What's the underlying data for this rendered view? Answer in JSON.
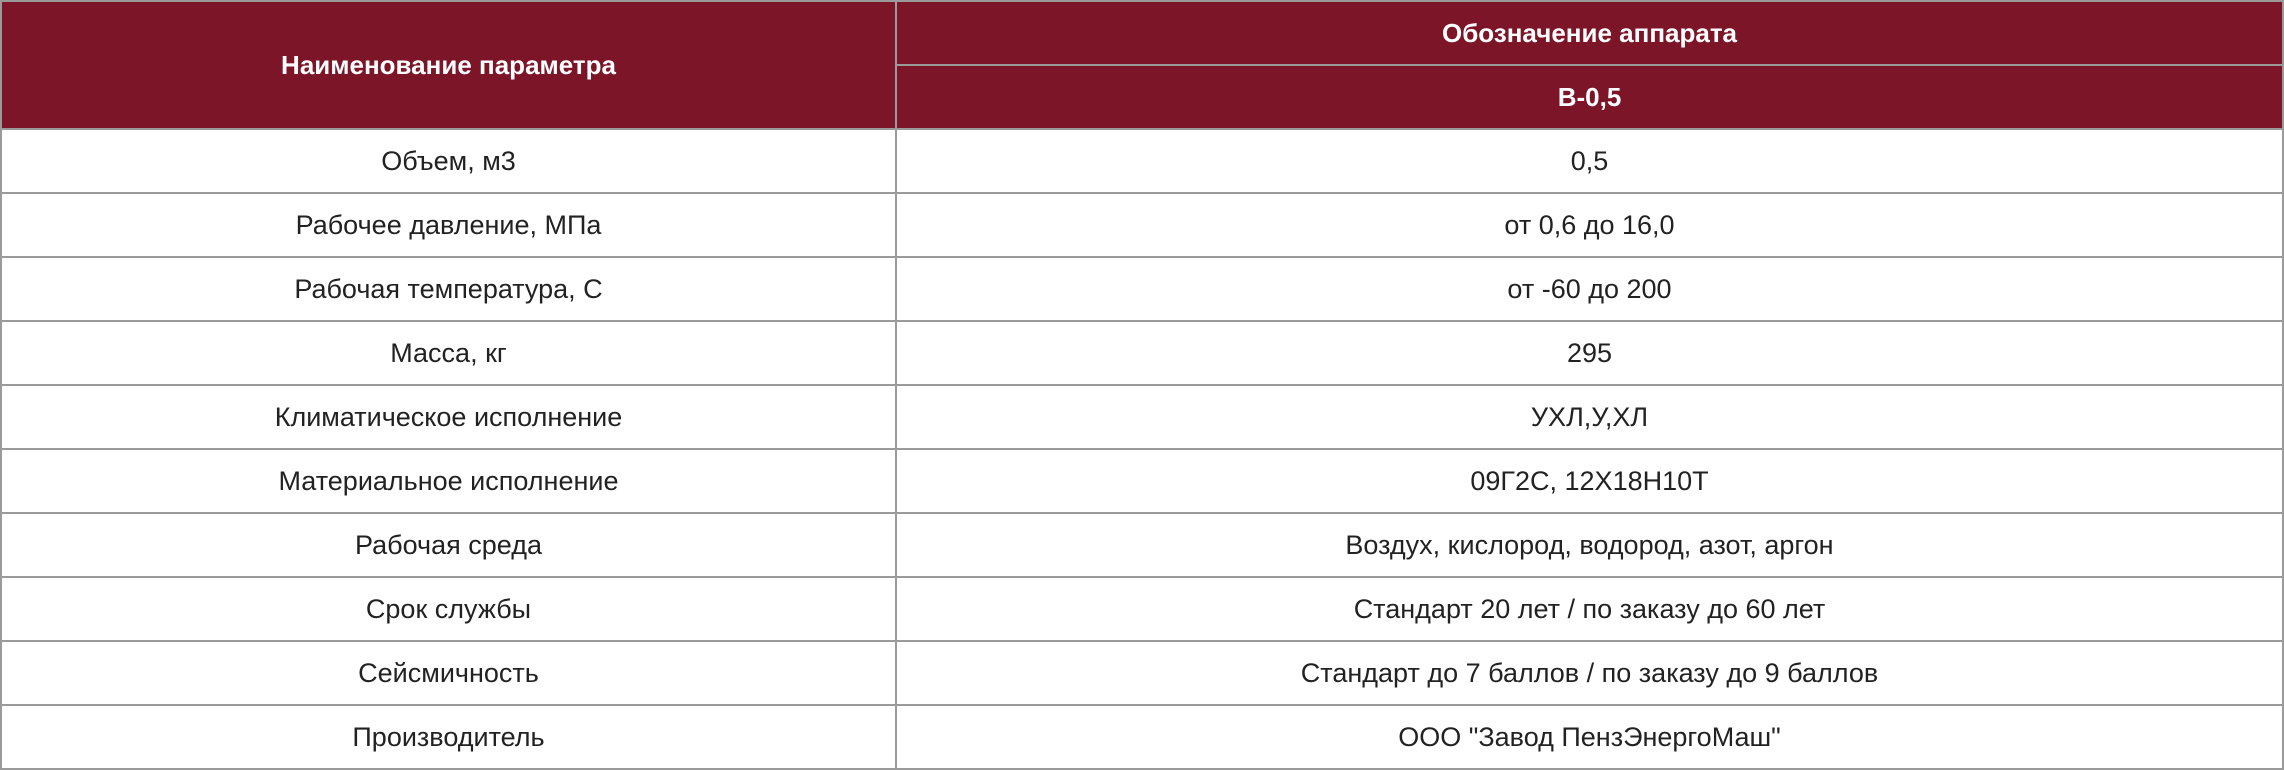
{
  "header": {
    "param_name": "Наименование параметра",
    "designation": "Обозначение аппарата",
    "model": "В-0,5"
  },
  "colors": {
    "header_bg": "#7b1527",
    "header_text": "#ffffff",
    "border": "#9a9a9a"
  },
  "rows": [
    {
      "param": "Объем, м3",
      "value": "0,5"
    },
    {
      "param": "Рабочее давление, МПа",
      "value": "от 0,6 до 16,0"
    },
    {
      "param": "Рабочая температура, С",
      "value": "от -60 до 200"
    },
    {
      "param": "Масса, кг",
      "value": "295"
    },
    {
      "param": "Климатическое исполнение",
      "value": "УХЛ,У,ХЛ"
    },
    {
      "param": "Материальное исполнение",
      "value": "09Г2С, 12Х18Н10Т"
    },
    {
      "param": "Рабочая среда",
      "value": "Воздух, кислород, водород, азот, аргон"
    },
    {
      "param": "Срок службы",
      "value": "Стандарт 20 лет / по заказу до 60 лет"
    },
    {
      "param": "Сейсмичность",
      "value": "Стандарт до 7 баллов / по заказу до 9 баллов"
    },
    {
      "param": "Производитель",
      "value": "ООО \"Завод ПензЭнергоМаш\""
    }
  ]
}
